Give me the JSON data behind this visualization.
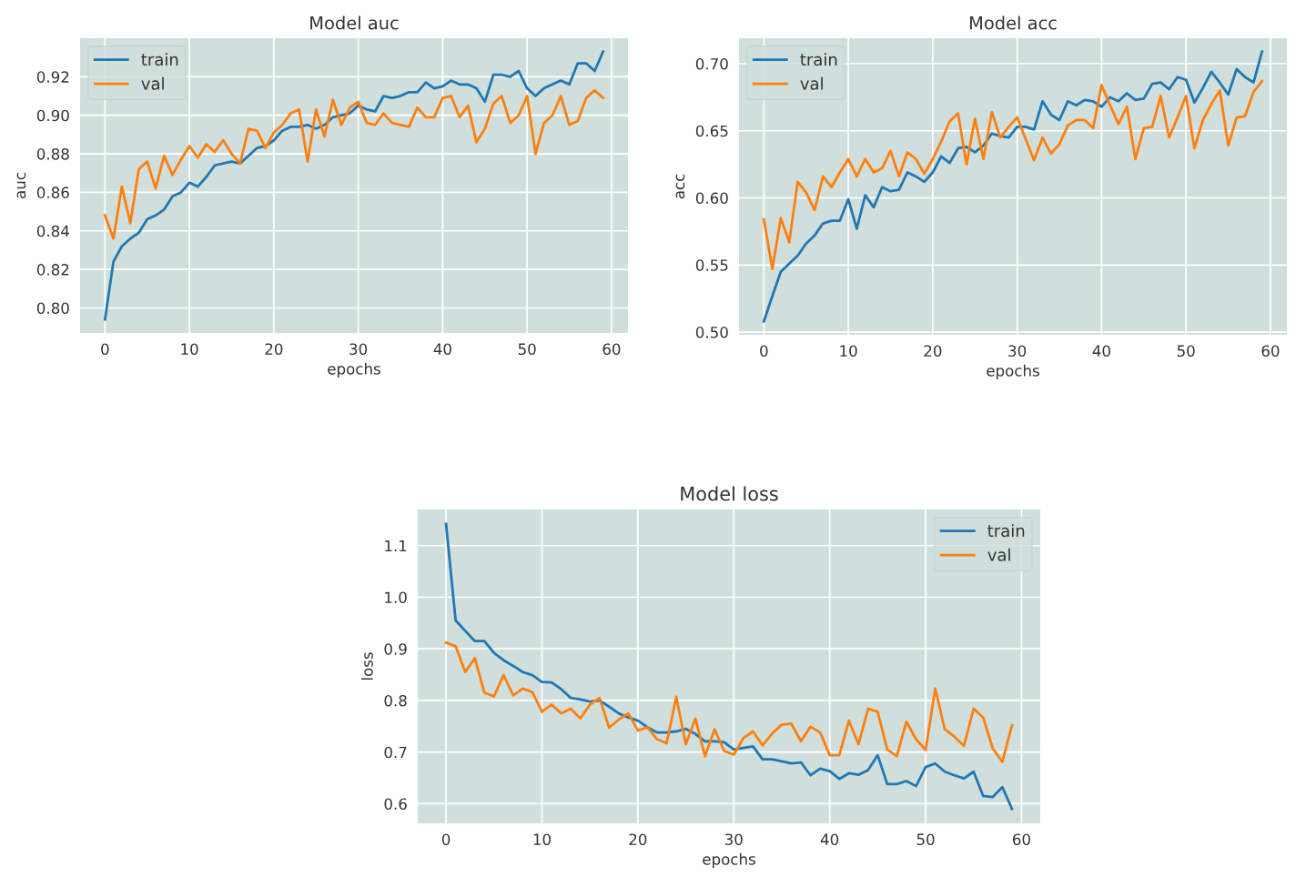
{
  "chart_data": [
    {
      "type": "line",
      "title": "Model auc",
      "xlabel": "epochs",
      "ylabel": "auc",
      "x": [
        0,
        1,
        2,
        3,
        4,
        5,
        6,
        7,
        8,
        9,
        10,
        11,
        12,
        13,
        14,
        15,
        16,
        17,
        18,
        19,
        20,
        21,
        22,
        23,
        24,
        25,
        26,
        27,
        28,
        29,
        30,
        31,
        32,
        33,
        34,
        35,
        36,
        37,
        38,
        39,
        40,
        41,
        42,
        43,
        44,
        45,
        46,
        47,
        48,
        49,
        50,
        51,
        52,
        53,
        54,
        55,
        56,
        57,
        58,
        59
      ],
      "xlim": [
        -2.95,
        61.95
      ],
      "xticks": [
        0,
        10,
        20,
        30,
        40,
        50,
        60
      ],
      "ylim": [
        0.787,
        0.94
      ],
      "yticks": [
        {
          "value": 0.8,
          "label": "0.80"
        },
        0.82,
        0.84,
        0.86,
        0.88,
        {
          "value": 0.9,
          "label": "0.90"
        },
        0.92
      ],
      "grid": true,
      "legend": "top left",
      "series": [
        {
          "name": "train",
          "color": "#1f77b4",
          "values": [
            0.794,
            0.824,
            0.832,
            0.836,
            0.839,
            0.846,
            0.848,
            0.851,
            0.858,
            0.86,
            0.865,
            0.863,
            0.868,
            0.874,
            0.875,
            0.876,
            0.875,
            0.879,
            0.883,
            0.884,
            0.887,
            0.892,
            0.894,
            0.894,
            0.895,
            0.893,
            0.895,
            0.899,
            0.9,
            0.901,
            0.905,
            0.903,
            0.902,
            0.91,
            0.909,
            0.91,
            0.912,
            0.912,
            0.917,
            0.914,
            0.915,
            0.918,
            0.916,
            0.916,
            0.914,
            0.907,
            0.921,
            0.921,
            0.92,
            0.923,
            0.914,
            0.91,
            0.914,
            0.916,
            0.918,
            0.916,
            0.927,
            0.927,
            0.923,
            0.933
          ]
        },
        {
          "name": "val",
          "color": "#ff7f0e",
          "values": [
            0.848,
            0.836,
            0.863,
            0.844,
            0.872,
            0.876,
            0.862,
            0.879,
            0.869,
            0.877,
            0.884,
            0.878,
            0.885,
            0.881,
            0.887,
            0.88,
            0.875,
            0.893,
            0.892,
            0.883,
            0.891,
            0.895,
            0.901,
            0.903,
            0.876,
            0.903,
            0.889,
            0.908,
            0.895,
            0.904,
            0.907,
            0.896,
            0.895,
            0.901,
            0.896,
            0.895,
            0.894,
            0.904,
            0.899,
            0.899,
            0.909,
            0.91,
            0.899,
            0.905,
            0.886,
            0.893,
            0.906,
            0.91,
            0.896,
            0.9,
            0.91,
            0.88,
            0.896,
            0.9,
            0.91,
            0.895,
            0.897,
            0.909,
            0.913,
            0.909
          ]
        }
      ]
    },
    {
      "type": "line",
      "title": "Model acc",
      "xlabel": "epochs",
      "ylabel": "acc",
      "x": [
        0,
        1,
        2,
        3,
        4,
        5,
        6,
        7,
        8,
        9,
        10,
        11,
        12,
        13,
        14,
        15,
        16,
        17,
        18,
        19,
        20,
        21,
        22,
        23,
        24,
        25,
        26,
        27,
        28,
        29,
        30,
        31,
        32,
        33,
        34,
        35,
        36,
        37,
        38,
        39,
        40,
        41,
        42,
        43,
        44,
        45,
        46,
        47,
        48,
        49,
        50,
        51,
        52,
        53,
        54,
        55,
        56,
        57,
        58,
        59
      ],
      "xlim": [
        -2.95,
        61.95
      ],
      "xticks": [
        0,
        10,
        20,
        30,
        40,
        50,
        60
      ],
      "ylim": [
        0.498,
        0.719
      ],
      "yticks": [
        {
          "value": 0.5,
          "label": "0.50"
        },
        0.55,
        {
          "value": 0.6,
          "label": "0.60"
        },
        0.65,
        {
          "value": 0.7,
          "label": "0.70"
        }
      ],
      "grid": true,
      "legend": "top left",
      "series": [
        {
          "name": "train",
          "color": "#1f77b4",
          "values": [
            0.508,
            0.527,
            0.545,
            0.551,
            0.557,
            0.566,
            0.572,
            0.581,
            0.583,
            0.583,
            0.599,
            0.577,
            0.602,
            0.593,
            0.608,
            0.605,
            0.606,
            0.619,
            0.616,
            0.612,
            0.619,
            0.631,
            0.626,
            0.637,
            0.638,
            0.634,
            0.639,
            0.648,
            0.646,
            0.645,
            0.653,
            0.653,
            0.651,
            0.672,
            0.662,
            0.658,
            0.672,
            0.669,
            0.673,
            0.672,
            0.668,
            0.675,
            0.672,
            0.678,
            0.673,
            0.674,
            0.685,
            0.686,
            0.681,
            0.69,
            0.688,
            0.671,
            0.682,
            0.694,
            0.686,
            0.677,
            0.696,
            0.69,
            0.686,
            0.709
          ]
        },
        {
          "name": "val",
          "color": "#ff7f0e",
          "values": [
            0.584,
            0.547,
            0.585,
            0.567,
            0.612,
            0.604,
            0.591,
            0.616,
            0.608,
            0.619,
            0.629,
            0.616,
            0.629,
            0.619,
            0.622,
            0.635,
            0.616,
            0.634,
            0.629,
            0.618,
            0.629,
            0.642,
            0.657,
            0.663,
            0.625,
            0.659,
            0.629,
            0.664,
            0.645,
            0.653,
            0.66,
            0.644,
            0.628,
            0.645,
            0.633,
            0.64,
            0.654,
            0.658,
            0.658,
            0.652,
            0.684,
            0.669,
            0.655,
            0.668,
            0.629,
            0.652,
            0.653,
            0.676,
            0.645,
            0.66,
            0.676,
            0.637,
            0.658,
            0.67,
            0.68,
            0.639,
            0.66,
            0.661,
            0.679,
            0.687
          ]
        }
      ]
    },
    {
      "type": "line",
      "title": "Model loss",
      "xlabel": "epochs",
      "ylabel": "loss",
      "x": [
        0,
        1,
        2,
        3,
        4,
        5,
        6,
        7,
        8,
        9,
        10,
        11,
        12,
        13,
        14,
        15,
        16,
        17,
        18,
        19,
        20,
        21,
        22,
        23,
        24,
        25,
        26,
        27,
        28,
        29,
        30,
        31,
        32,
        33,
        34,
        35,
        36,
        37,
        38,
        39,
        40,
        41,
        42,
        43,
        44,
        45,
        46,
        47,
        48,
        49,
        50,
        51,
        52,
        53,
        54,
        55,
        56,
        57,
        58,
        59
      ],
      "xlim": [
        -2.95,
        61.95
      ],
      "xticks": [
        0,
        10,
        20,
        30,
        40,
        50,
        60
      ],
      "ylim": [
        0.562,
        1.17
      ],
      "yticks": [
        0.6,
        0.7,
        0.8,
        0.9,
        {
          "value": 1,
          "label": "1.0"
        },
        1.1
      ],
      "grid": true,
      "legend": "top right",
      "series": [
        {
          "name": "train",
          "color": "#1f77b4",
          "values": [
            1.142,
            0.955,
            0.935,
            0.915,
            0.915,
            0.892,
            0.878,
            0.867,
            0.855,
            0.849,
            0.836,
            0.835,
            0.822,
            0.805,
            0.802,
            0.798,
            0.8,
            0.788,
            0.775,
            0.767,
            0.761,
            0.748,
            0.738,
            0.738,
            0.74,
            0.745,
            0.735,
            0.721,
            0.721,
            0.719,
            0.705,
            0.708,
            0.711,
            0.686,
            0.686,
            0.682,
            0.678,
            0.68,
            0.655,
            0.668,
            0.663,
            0.648,
            0.659,
            0.656,
            0.665,
            0.694,
            0.638,
            0.638,
            0.644,
            0.634,
            0.671,
            0.678,
            0.662,
            0.655,
            0.649,
            0.662,
            0.615,
            0.613,
            0.632,
            0.59
          ]
        },
        {
          "name": "val",
          "color": "#ff7f0e",
          "values": [
            0.912,
            0.905,
            0.855,
            0.882,
            0.815,
            0.808,
            0.849,
            0.81,
            0.823,
            0.816,
            0.778,
            0.792,
            0.775,
            0.784,
            0.765,
            0.792,
            0.805,
            0.747,
            0.763,
            0.775,
            0.742,
            0.748,
            0.725,
            0.717,
            0.807,
            0.715,
            0.765,
            0.692,
            0.744,
            0.702,
            0.695,
            0.727,
            0.74,
            0.713,
            0.736,
            0.753,
            0.755,
            0.721,
            0.749,
            0.738,
            0.694,
            0.694,
            0.761,
            0.715,
            0.784,
            0.778,
            0.705,
            0.692,
            0.759,
            0.725,
            0.704,
            0.823,
            0.744,
            0.73,
            0.712,
            0.784,
            0.767,
            0.707,
            0.681,
            0.752
          ]
        }
      ]
    }
  ]
}
